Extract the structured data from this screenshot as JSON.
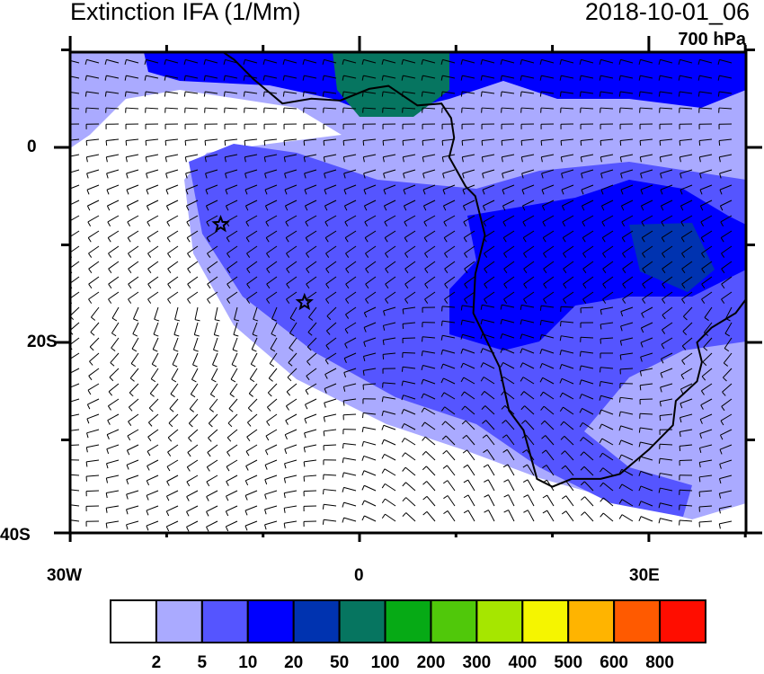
{
  "title": "Extinction IFA (1/Mm)",
  "datetime": "2018-10-01_06",
  "level": "700 hPa",
  "axes": {
    "lat_labels": [
      "0",
      "20S",
      "40S"
    ],
    "lon_labels": [
      "30W",
      "0",
      "30E"
    ],
    "lon_range": [
      -30,
      40
    ],
    "lat_range": [
      -40,
      10
    ]
  },
  "colorbar": {
    "labels": [
      "2",
      "5",
      "10",
      "20",
      "50",
      "100",
      "200",
      "300",
      "400",
      "500",
      "600",
      "800"
    ],
    "colors": [
      "#ffffff",
      "#aaaaff",
      "#5555ff",
      "#0000ff",
      "#0033b0",
      "#067560",
      "#06aa15",
      "#50c80a",
      "#a6e600",
      "#f5f500",
      "#ffb400",
      "#ff5a00",
      "#ff0d00"
    ]
  },
  "markers": [
    {
      "type": "star",
      "lon": -14.4,
      "lat": -7.9
    },
    {
      "type": "star",
      "lon": -5.7,
      "lat": -15.9
    }
  ]
}
